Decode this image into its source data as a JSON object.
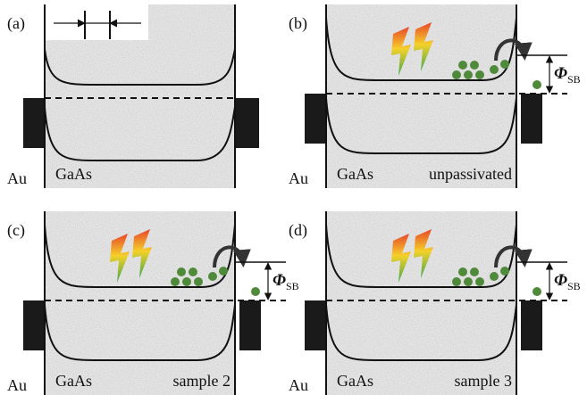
{
  "panels": [
    {
      "label": "(a)",
      "metal": "Au",
      "semiconductor": "GaAs"
    },
    {
      "label": "(b)",
      "metal": "Au",
      "semiconductor": "GaAs",
      "sample": "unpassivated",
      "barrier_symbol": "Φ",
      "barrier_subscript": "SB"
    },
    {
      "label": "(c)",
      "metal": "Au",
      "semiconductor": "GaAs",
      "sample": "sample 2",
      "barrier_symbol": "Φ",
      "barrier_subscript": "SB"
    },
    {
      "label": "(d)",
      "metal": "Au",
      "semiconductor": "GaAs",
      "sample": "sample 3",
      "barrier_symbol": "Φ",
      "barrier_subscript": "SB"
    }
  ]
}
